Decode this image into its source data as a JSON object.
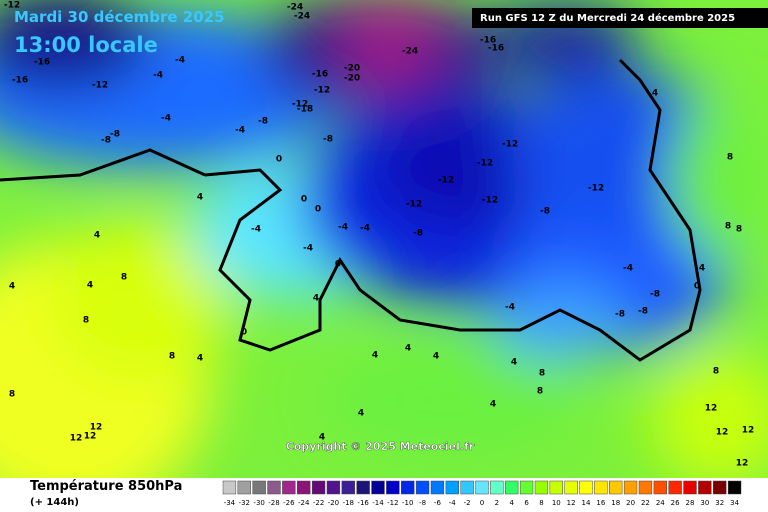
{
  "header": {
    "date": "Mardi 30 décembre 2025",
    "time": "13:00 locale",
    "run": "Run GFS 12 Z du Mercredi 24 décembre 2025"
  },
  "copyright": "Copyright © 2025 Meteociel.fr",
  "footer": {
    "title": "Température 850hPa",
    "lead": "(+ 144h)"
  },
  "scale": {
    "values": [
      -34,
      -32,
      -30,
      -28,
      -26,
      -24,
      -22,
      -20,
      -18,
      -16,
      -14,
      -12,
      -10,
      -8,
      -6,
      -4,
      -2,
      0,
      2,
      4,
      6,
      8,
      10,
      12,
      14,
      16,
      18,
      20,
      22,
      24,
      26,
      28,
      30,
      32,
      34
    ],
    "colors": [
      "#c8c8c8",
      "#a0a0a0",
      "#787878",
      "#8c5a8c",
      "#a0288c",
      "#8c1478",
      "#640a78",
      "#50148c",
      "#3c1e96",
      "#1e1478",
      "#000096",
      "#0000c8",
      "#0028e6",
      "#0050ff",
      "#0078ff",
      "#00a0ff",
      "#32c8ff",
      "#64e6ff",
      "#64ffc8",
      "#32ff64",
      "#64ff32",
      "#96ff00",
      "#c8ff00",
      "#e6ff00",
      "#ffff00",
      "#ffe600",
      "#ffc800",
      "#ffa000",
      "#ff7800",
      "#ff5000",
      "#ff2800",
      "#e60000",
      "#b40000",
      "#780000",
      "#000000"
    ]
  },
  "map": {
    "labels": [
      -12,
      -16,
      -16,
      -24,
      -24,
      -16,
      -20,
      -20,
      -12,
      -24,
      -16,
      -16,
      -12,
      -18,
      -8,
      -12,
      -12,
      -12,
      -12,
      -12,
      -12,
      -12,
      -8,
      -8,
      -4,
      -4,
      -4,
      -8,
      -8,
      -4,
      -8,
      0,
      0,
      0,
      -4,
      -4,
      -4,
      -4,
      0,
      4,
      0,
      4,
      4,
      4,
      8,
      8,
      4,
      8,
      12,
      12,
      12,
      8,
      4,
      4,
      4,
      4,
      4,
      4,
      4,
      8,
      8,
      4,
      -4,
      -8,
      -8,
      -8,
      -4,
      4,
      0,
      4,
      8,
      8,
      8,
      8,
      12,
      12,
      12,
      12
    ]
  }
}
